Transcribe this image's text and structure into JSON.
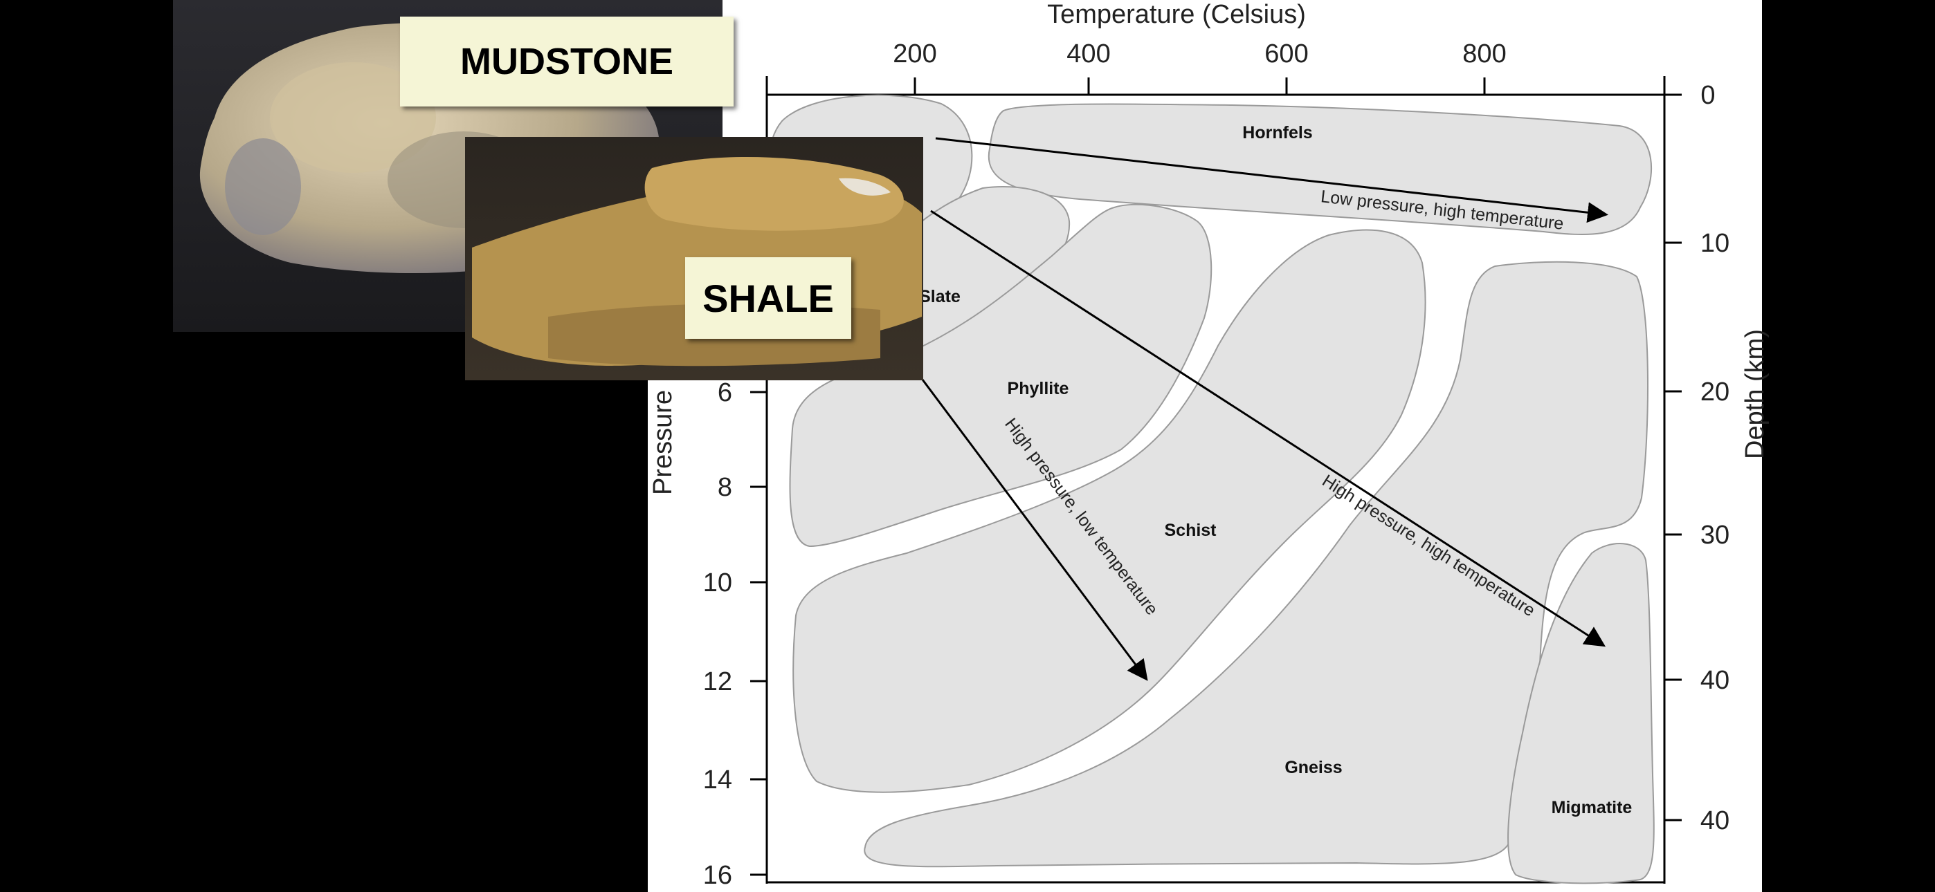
{
  "diagram": {
    "x_axis_title": "Temperature (Celsius)",
    "x_ticks": [
      "200",
      "400",
      "600",
      "800"
    ],
    "y_left_title": "Pressure",
    "y_left_ticks": [
      "6",
      "8",
      "10",
      "12",
      "14",
      "16"
    ],
    "y_right_title": "Depth (km)",
    "y_right_ticks": [
      "0",
      "10",
      "20",
      "30",
      "40",
      "40"
    ],
    "zones": {
      "hornfels": "Hornfels",
      "slate": "Slate",
      "phyllite": "Phyllite",
      "schist": "Schist",
      "gneiss": "Gneiss",
      "migmatite": "Migmatite"
    },
    "arrows": {
      "low_high": "Low pressure, high temperature",
      "high_low": "High pressure, low temperature",
      "high_high": "High pressure, high temperature"
    },
    "colors": {
      "zone_fill": "#e3e3e3",
      "zone_stroke": "#9a9a9a",
      "background": "#ffffff"
    }
  },
  "photos": {
    "mudstone_label": "MUDSTONE",
    "shale_label": "SHALE"
  }
}
